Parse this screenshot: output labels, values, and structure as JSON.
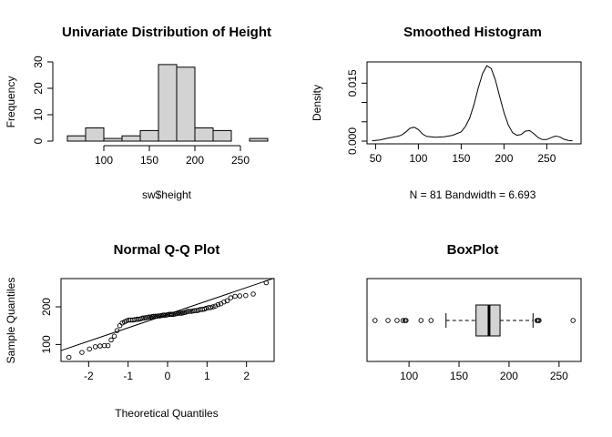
{
  "chart_data": [
    {
      "type": "bar",
      "id": "histogram",
      "title": "Univariate Distribution of Height",
      "xlabel": "sw$height",
      "ylabel": "Frequency",
      "bin_edges": [
        60,
        80,
        100,
        120,
        140,
        160,
        180,
        200,
        220,
        240,
        260,
        280
      ],
      "values": [
        2,
        5,
        1,
        2,
        4,
        29,
        28,
        5,
        4,
        0,
        1
      ],
      "xticks": [
        100,
        150,
        200,
        250
      ],
      "yticks": [
        0,
        10,
        20,
        30
      ],
      "xlim": [
        60,
        280
      ],
      "ylim": [
        0,
        30
      ],
      "bar_color": "#d3d3d3",
      "frame": false
    },
    {
      "type": "line",
      "id": "density",
      "title": "Smoothed Histogram",
      "ylabel": "Density",
      "xlabel": "N = 81   Bandwidth = 6.693",
      "x": [
        46,
        55,
        65,
        75,
        80,
        85,
        90,
        95,
        100,
        105,
        110,
        120,
        130,
        140,
        150,
        155,
        160,
        165,
        170,
        175,
        180,
        185,
        190,
        195,
        200,
        205,
        210,
        215,
        220,
        225,
        230,
        235,
        240,
        245,
        250,
        255,
        260,
        265,
        270,
        275,
        280
      ],
      "y": [
        0.0001,
        0.0003,
        0.0008,
        0.0012,
        0.0015,
        0.0023,
        0.0033,
        0.0036,
        0.003,
        0.0018,
        0.0012,
        0.001,
        0.0011,
        0.0015,
        0.0024,
        0.0038,
        0.006,
        0.0095,
        0.0138,
        0.0175,
        0.0195,
        0.0188,
        0.0158,
        0.0115,
        0.0074,
        0.0042,
        0.0022,
        0.0015,
        0.0017,
        0.0026,
        0.0027,
        0.0019,
        0.0009,
        0.0004,
        0.0004,
        0.0009,
        0.0013,
        0.0011,
        0.0005,
        0.0002,
        0.0001
      ],
      "xticks": [
        50,
        100,
        150,
        200,
        250
      ],
      "yticks": [
        0.0,
        0.005,
        0.01,
        0.015
      ],
      "ytick_labels": [
        "0.000",
        "",
        "",
        "0.015"
      ],
      "xlim": [
        40,
        290
      ],
      "ylim": [
        0,
        0.0205
      ],
      "frame": true
    },
    {
      "type": "scatter",
      "id": "qqplot",
      "title": "Normal Q-Q Plot",
      "xlabel": "Theoretical Quantiles",
      "ylabel": "Sample Quantiles",
      "x": [
        -2.5,
        -2.17,
        -1.98,
        -1.83,
        -1.71,
        -1.6,
        -1.51,
        -1.43,
        -1.35,
        -1.28,
        -1.21,
        -1.15,
        -1.09,
        -1.04,
        -0.98,
        -0.93,
        -0.88,
        -0.83,
        -0.78,
        -0.74,
        -0.69,
        -0.64,
        -0.6,
        -0.56,
        -0.51,
        -0.47,
        -0.43,
        -0.39,
        -0.35,
        -0.31,
        -0.27,
        -0.23,
        -0.19,
        -0.15,
        -0.11,
        -0.08,
        -0.04,
        0.0,
        0.04,
        0.08,
        0.11,
        0.15,
        0.19,
        0.23,
        0.27,
        0.31,
        0.35,
        0.39,
        0.43,
        0.47,
        0.51,
        0.56,
        0.6,
        0.64,
        0.69,
        0.74,
        0.78,
        0.83,
        0.88,
        0.93,
        0.98,
        1.04,
        1.09,
        1.15,
        1.21,
        1.28,
        1.35,
        1.43,
        1.51,
        1.6,
        1.71,
        1.83,
        1.98,
        2.17,
        2.5
      ],
      "y": [
        66,
        79,
        88,
        94,
        96,
        97,
        97,
        112,
        122,
        137,
        150,
        157,
        160,
        163,
        165,
        165,
        165,
        166,
        167,
        167,
        168,
        170,
        170,
        171,
        172,
        173,
        173,
        174,
        175,
        175,
        175,
        176,
        176,
        177,
        178,
        178,
        178,
        179,
        180,
        180,
        180,
        180,
        181,
        182,
        183,
        183,
        183,
        184,
        185,
        186,
        188,
        188,
        188,
        189,
        190,
        190,
        191,
        193,
        193,
        194,
        196,
        198,
        198,
        200,
        202,
        206,
        208,
        213,
        216,
        224,
        228,
        229,
        230,
        234,
        264
      ],
      "line": {
        "slope": 35.6,
        "intercept": 180
      },
      "xticks": [
        -2,
        -1,
        0,
        1,
        2
      ],
      "yticks": [
        100,
        200
      ],
      "xlim": [
        -2.7,
        2.7
      ],
      "ylim": [
        55,
        275
      ],
      "frame": true
    },
    {
      "type": "box",
      "id": "boxplot",
      "title": "BoxPlot",
      "horizontal": true,
      "q1": 167,
      "median": 180,
      "q3": 191,
      "whisker_low": 137,
      "whisker_high": 224,
      "outliers": [
        66,
        79,
        88,
        94,
        96,
        97,
        112,
        122,
        228,
        229,
        230,
        264
      ],
      "xticks": [
        100,
        150,
        200,
        250
      ],
      "xlim": [
        58,
        272
      ],
      "box_color": "#d3d3d3",
      "frame": true
    }
  ]
}
